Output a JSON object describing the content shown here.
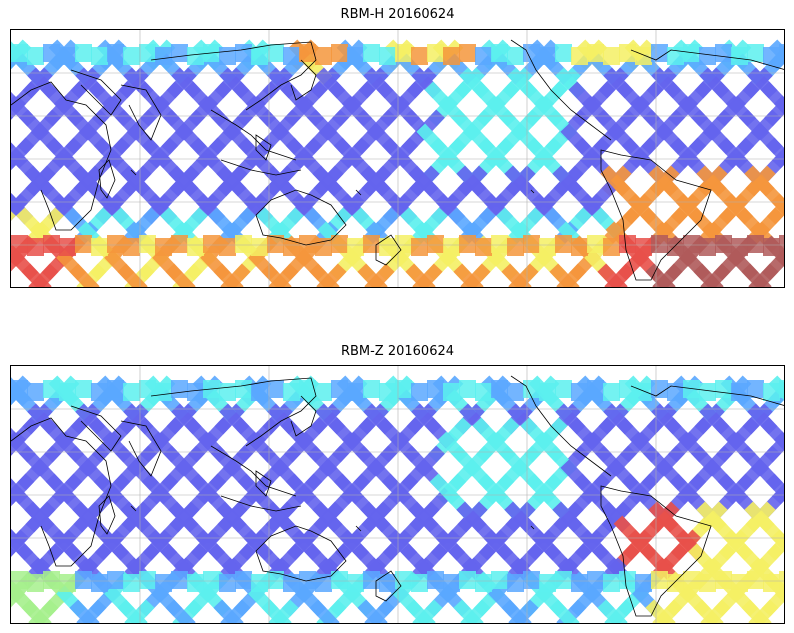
{
  "panels": [
    {
      "id": "top",
      "title": "RBM-H 20160624",
      "hot_regions": [
        "southern-high-latitudes",
        "south-atlantic",
        "north-pacific-band"
      ]
    },
    {
      "id": "bottom",
      "title": "RBM-Z 20160624",
      "hot_regions": [
        "south-america-south",
        "south-atlantic"
      ]
    }
  ],
  "colors": {
    "swath_low": "#6464ee",
    "swath_mid": "#5aa8ff",
    "swath_cyan": "#5cf0ee",
    "swath_green": "#a6f08c",
    "swath_yellow": "#f5f064",
    "swath_orange": "#f5963c",
    "swath_red": "#e8504a",
    "swath_dark": "#b05a5a",
    "coastline": "#000000",
    "grid": "#b0b0b0"
  }
}
